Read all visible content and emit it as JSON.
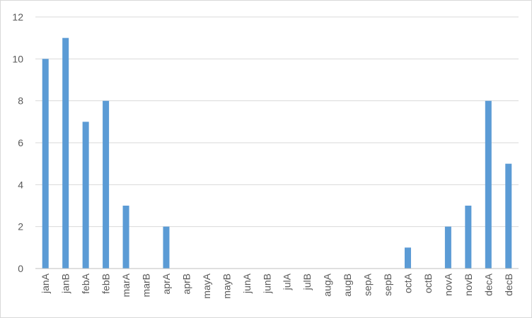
{
  "chart_data": {
    "type": "bar",
    "categories": [
      "janA",
      "janB",
      "febA",
      "febB",
      "marA",
      "marB",
      "aprA",
      "aprB",
      "mayA",
      "mayB",
      "junA",
      "junB",
      "julA",
      "julB",
      "augA",
      "augB",
      "sepA",
      "sepB",
      "octA",
      "octB",
      "novA",
      "novB",
      "decA",
      "decB"
    ],
    "values": [
      10,
      11,
      7,
      8,
      3,
      0,
      2,
      0,
      0,
      0,
      0,
      0,
      0,
      0,
      0,
      0,
      0,
      0,
      1,
      0,
      2,
      3,
      8,
      5
    ],
    "yticks": [
      "0",
      "2",
      "4",
      "6",
      "8",
      "10",
      "12"
    ],
    "ylim": [
      0,
      12
    ],
    "title": "",
    "xlabel": "",
    "ylabel": "",
    "grid": true,
    "legend": "none",
    "bar_color": "#5b9bd5",
    "grid_color": "#d9d9d9",
    "axis_color": "#bfbfbf"
  }
}
